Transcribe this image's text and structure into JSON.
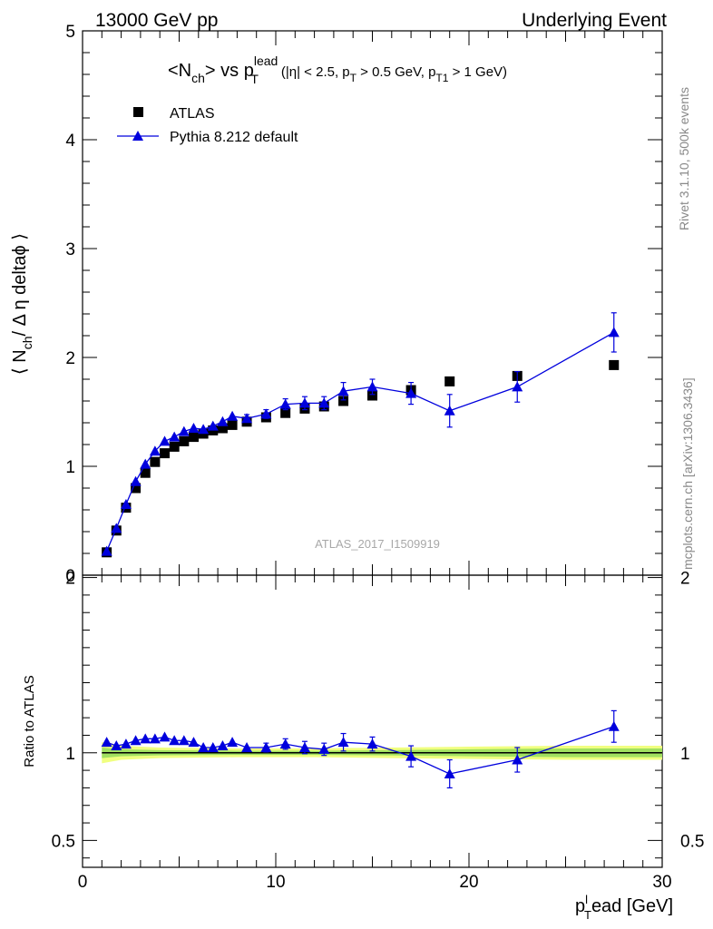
{
  "header": {
    "left": "13000 GeV pp",
    "right": "Underlying Event"
  },
  "side_labels": {
    "rivet": "Rivet 3.1.10,  500k events",
    "mcplots": "mcplots.cern.ch [arXiv:1306.3436]"
  },
  "watermark": "ATLAS_2017_I1509919",
  "colors": {
    "data": "#000000",
    "mc": "#0000dd",
    "band_inner": "#a0e060",
    "band_outer": "#f0ff80"
  },
  "chart_data": [
    {
      "type": "scatter",
      "title_parts": {
        "main": "<N",
        "main_sub": "ch",
        "mid": "> vs p",
        "mid_sup": "lead",
        "mid_sub": "T",
        "cut_a": "(|η| < 2.5, p",
        "cut_a_sub": "T",
        "cut_b": " > 0.5 GeV, p",
        "cut_b_sub": "T1",
        "cut_c": " > 1 GeV)"
      },
      "ylabel_parts": {
        "a": "⟨ N",
        "sub": "ch",
        "b": "/ Δ η deltaϕ ⟩"
      },
      "xlim": [
        0,
        30
      ],
      "ylim": [
        0,
        5
      ],
      "yticks": [
        0,
        1,
        2,
        3,
        4,
        5
      ],
      "legend_position": "top-left",
      "series": [
        {
          "name": "ATLAS",
          "marker": "square",
          "x": [
            1.25,
            1.75,
            2.25,
            2.75,
            3.25,
            3.75,
            4.25,
            4.75,
            5.25,
            5.75,
            6.25,
            6.75,
            7.25,
            7.75,
            8.5,
            9.5,
            10.5,
            11.5,
            12.5,
            13.5,
            15,
            17,
            19,
            22.5,
            27.5
          ],
          "y": [
            0.21,
            0.41,
            0.62,
            0.8,
            0.94,
            1.04,
            1.12,
            1.18,
            1.23,
            1.27,
            1.3,
            1.33,
            1.35,
            1.38,
            1.41,
            1.45,
            1.49,
            1.53,
            1.55,
            1.6,
            1.65,
            1.7,
            1.78,
            1.83,
            1.93
          ],
          "err": [
            0.005,
            0.008,
            0.01,
            0.012,
            0.012,
            0.012,
            0.012,
            0.012,
            0.012,
            0.012,
            0.012,
            0.012,
            0.012,
            0.012,
            0.012,
            0.012,
            0.012,
            0.015,
            0.015,
            0.015,
            0.02,
            0.03,
            0.03,
            0.04,
            0.04
          ]
        },
        {
          "name": "Pythia 8.212 default",
          "marker": "triangle",
          "x": [
            1.25,
            1.75,
            2.25,
            2.75,
            3.25,
            3.75,
            4.25,
            4.75,
            5.25,
            5.75,
            6.25,
            6.75,
            7.25,
            7.75,
            8.5,
            9.5,
            10.5,
            11.5,
            12.5,
            13.5,
            15,
            17,
            19,
            22.5,
            27.5
          ],
          "y": [
            0.22,
            0.43,
            0.65,
            0.86,
            1.02,
            1.14,
            1.23,
            1.27,
            1.32,
            1.35,
            1.34,
            1.37,
            1.41,
            1.46,
            1.44,
            1.48,
            1.57,
            1.58,
            1.58,
            1.69,
            1.73,
            1.67,
            1.51,
            1.73,
            2.23
          ],
          "err": [
            0.005,
            0.01,
            0.01,
            0.015,
            0.02,
            0.02,
            0.02,
            0.02,
            0.025,
            0.025,
            0.025,
            0.025,
            0.03,
            0.03,
            0.035,
            0.04,
            0.05,
            0.06,
            0.06,
            0.08,
            0.07,
            0.1,
            0.15,
            0.14,
            0.18
          ]
        }
      ]
    },
    {
      "type": "scatter",
      "ylabel": "Ratio to ATLAS",
      "xlabel_parts": {
        "a": "p",
        "sup": "l",
        "sub": "T",
        "b": "ead [GeV]"
      },
      "xlim": [
        0,
        30
      ],
      "ylim": [
        0.3,
        2.3
      ],
      "yticks": [
        0.5,
        1,
        2
      ],
      "ytick_labels": [
        "0.5",
        "1",
        "2"
      ],
      "xticks": [
        0,
        10,
        20,
        30
      ],
      "xtick_labels": [
        "0",
        "10",
        "20",
        "30"
      ],
      "series": [
        {
          "name": "Pythia 8.212 default",
          "x": [
            1.25,
            1.75,
            2.25,
            2.75,
            3.25,
            3.75,
            4.25,
            4.75,
            5.25,
            5.75,
            6.25,
            6.75,
            7.25,
            7.75,
            8.5,
            9.5,
            10.5,
            11.5,
            12.5,
            13.5,
            15,
            17,
            19,
            22.5,
            27.5
          ],
          "y": [
            1.06,
            1.04,
            1.05,
            1.07,
            1.08,
            1.08,
            1.09,
            1.07,
            1.07,
            1.06,
            1.03,
            1.03,
            1.04,
            1.06,
            1.03,
            1.03,
            1.05,
            1.03,
            1.02,
            1.06,
            1.05,
            0.98,
            0.88,
            0.96,
            1.15
          ],
          "err": [
            0.01,
            0.015,
            0.015,
            0.015,
            0.015,
            0.015,
            0.015,
            0.015,
            0.015,
            0.015,
            0.015,
            0.015,
            0.02,
            0.02,
            0.02,
            0.025,
            0.03,
            0.035,
            0.035,
            0.05,
            0.04,
            0.06,
            0.08,
            0.07,
            0.09
          ]
        }
      ],
      "band": {
        "x": [
          1,
          2,
          4,
          8,
          12,
          16,
          20,
          25,
          30
        ],
        "inner": [
          0.03,
          0.02,
          0.015,
          0.012,
          0.012,
          0.015,
          0.02,
          0.025,
          0.025
        ],
        "outer": [
          0.06,
          0.04,
          0.03,
          0.025,
          0.025,
          0.03,
          0.035,
          0.04,
          0.04
        ]
      }
    }
  ]
}
